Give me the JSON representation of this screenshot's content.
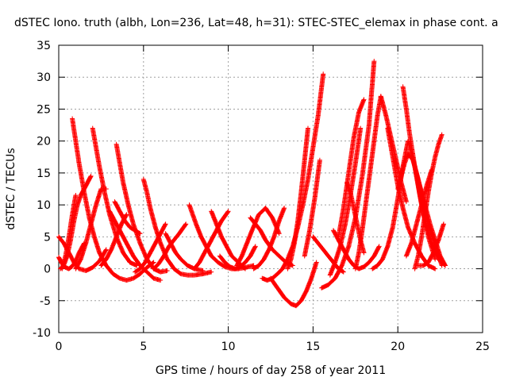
{
  "chart_data": {
    "type": "scatter",
    "title": "dSTEC Iono. truth (albh, Lon=236, Lat=48, h=31): STEC-STEC_elemax in phase cont. a",
    "xlabel": "GPS time / hours of day 258 of year 2011",
    "ylabel": "dSTEC  / TECUs",
    "xlim": [
      0,
      25
    ],
    "ylim": [
      -10,
      35
    ],
    "x_ticks": [
      0,
      5,
      10,
      15,
      20,
      25
    ],
    "y_ticks": [
      -10,
      -5,
      0,
      5,
      10,
      15,
      20,
      25,
      30,
      35
    ],
    "grid": true,
    "marker": "+",
    "marker_color": "#ff0000",
    "series": [
      {
        "arcs": [
          {
            "x": [
              0.0,
              0.3,
              0.6,
              0.9,
              1.2,
              1.6,
              2.0,
              2.4,
              2.8
            ],
            "y": [
              5.0,
              4.0,
              2.5,
              1.0,
              0.0,
              -0.3,
              0.2,
              1.2,
              3.0
            ]
          },
          {
            "x": [
              0.0,
              0.2,
              0.4,
              0.6,
              0.8,
              1.0,
              1.2,
              1.5
            ],
            "y": [
              1.8,
              0.8,
              0.2,
              0.0,
              0.4,
              1.2,
              2.5,
              4.0
            ]
          },
          {
            "x": [
              0.1,
              0.3,
              0.5,
              0.7,
              0.9,
              1.1,
              1.3,
              1.5,
              1.7,
              1.9
            ],
            "y": [
              0.0,
              0.6,
              2.0,
              4.5,
              7.5,
              10.0,
              11.5,
              12.5,
              13.5,
              14.5
            ]
          },
          {
            "x": [
              0.2,
              0.4,
              0.6,
              0.8,
              1.0
            ],
            "y": [
              0.0,
              2.0,
              5.0,
              8.5,
              11.5
            ]
          },
          {
            "x": [
              0.8,
              1.0,
              1.2,
              1.5,
              1.8,
              2.1,
              2.4,
              2.8,
              3.2,
              3.6,
              4.0,
              4.4,
              4.8,
              5.2,
              5.6
            ],
            "y": [
              23.5,
              20.0,
              16.5,
              12.0,
              8.0,
              5.0,
              2.5,
              0.5,
              -0.8,
              -1.5,
              -1.8,
              -1.5,
              -0.8,
              0.2,
              1.0
            ]
          },
          {
            "x": [
              2.0,
              2.2,
              2.4,
              2.7,
              3.0,
              3.4,
              3.8,
              4.2,
              4.6
            ],
            "y": [
              22.0,
              19.0,
              16.0,
              12.0,
              8.5,
              5.0,
              2.5,
              1.0,
              0.5
            ]
          },
          {
            "x": [
              1.0,
              1.3,
              1.6,
              1.9,
              2.2,
              2.5,
              2.8
            ],
            "y": [
              0.0,
              1.5,
              4.0,
              7.0,
              10.0,
              12.5,
              12.5
            ]
          },
          {
            "x": [
              3.4,
              3.6,
              3.8,
              4.1,
              4.4,
              4.8,
              5.2,
              5.6,
              6.0,
              6.4
            ],
            "y": [
              19.5,
              16.5,
              13.5,
              10.0,
              7.0,
              4.0,
              1.5,
              0.0,
              -0.5,
              -0.3
            ]
          },
          {
            "x": [
              3.0,
              3.3,
              3.6,
              4.0,
              4.4,
              4.8,
              5.2,
              5.6,
              6.0
            ],
            "y": [
              9.0,
              7.5,
              6.0,
              4.0,
              2.0,
              0.5,
              -0.5,
              -1.5,
              -1.8
            ]
          },
          {
            "x": [
              2.5,
              2.8,
              3.1,
              3.4,
              3.7,
              4.0
            ],
            "y": [
              0.5,
              1.5,
              3.0,
              5.0,
              7.0,
              8.5
            ]
          },
          {
            "x": [
              3.3,
              3.6,
              3.9,
              4.2,
              4.5,
              4.8
            ],
            "y": [
              10.5,
              9.0,
              7.5,
              6.5,
              6.0,
              5.5
            ]
          },
          {
            "x": [
              5.0,
              5.2,
              5.4,
              5.7,
              6.0,
              6.4,
              6.8,
              7.2,
              7.6,
              8.0,
              8.5,
              9.0
            ],
            "y": [
              14.0,
              12.0,
              9.5,
              6.5,
              4.0,
              1.5,
              0.0,
              -0.8,
              -1.0,
              -1.0,
              -0.8,
              -0.5
            ]
          },
          {
            "x": [
              4.5,
              4.8,
              5.1,
              5.4,
              5.7,
              6.0,
              6.3
            ],
            "y": [
              -0.5,
              0.0,
              1.0,
              2.5,
              4.0,
              5.5,
              7.0
            ]
          },
          {
            "x": [
              5.6,
              5.9,
              6.2,
              6.5,
              6.8,
              7.1,
              7.5
            ],
            "y": [
              0.0,
              0.8,
              2.0,
              3.5,
              4.5,
              5.5,
              7.0
            ]
          },
          {
            "x": [
              6.3,
              6.6,
              6.9,
              7.2,
              7.6,
              8.0,
              8.5
            ],
            "y": [
              5.5,
              4.0,
              2.5,
              1.5,
              0.5,
              0.0,
              -0.3
            ]
          },
          {
            "x": [
              7.7,
              7.9,
              8.1,
              8.4,
              8.7,
              9.0,
              9.4,
              9.8,
              10.2,
              10.6,
              11.0,
              11.5
            ],
            "y": [
              10.0,
              8.5,
              7.0,
              5.0,
              3.5,
              2.0,
              1.0,
              0.3,
              0.0,
              0.0,
              0.2,
              0.5
            ]
          },
          {
            "x": [
              9.5,
              9.8,
              10.1,
              10.4,
              10.7,
              11.0,
              11.3,
              11.6
            ],
            "y": [
              2.0,
              1.0,
              0.3,
              0.0,
              0.3,
              1.0,
              2.0,
              3.5
            ]
          },
          {
            "x": [
              9.0,
              9.3,
              9.6,
              9.9,
              10.2,
              10.6,
              11.0
            ],
            "y": [
              9.0,
              7.0,
              5.0,
              3.5,
              2.0,
              1.0,
              0.0
            ]
          },
          {
            "x": [
              8.0,
              8.3,
              8.6,
              8.9,
              9.2,
              9.6,
              10.0
            ],
            "y": [
              0.0,
              1.0,
              2.5,
              4.0,
              5.5,
              7.5,
              9.0
            ]
          },
          {
            "x": [
              10.5,
              10.8,
              11.1,
              11.4,
              11.8,
              12.2,
              12.6,
              13.0
            ],
            "y": [
              0.5,
              2.0,
              4.0,
              6.0,
              8.5,
              9.5,
              8.0,
              5.5
            ]
          },
          {
            "x": [
              11.3,
              11.6,
              11.9,
              12.2,
              12.6,
              13.0,
              13.4,
              13.8
            ],
            "y": [
              8.0,
              7.0,
              6.0,
              4.5,
              3.0,
              2.0,
              1.0,
              0.5
            ]
          },
          {
            "x": [
              11.5,
              11.8,
              12.1,
              12.4,
              12.7,
              13.0,
              13.3
            ],
            "y": [
              0.0,
              0.5,
              1.5,
              3.0,
              5.0,
              7.5,
              9.5
            ]
          },
          {
            "x": [
              12.0,
              12.3,
              12.6,
              12.9,
              13.2,
              13.5,
              13.8,
              14.1,
              14.4,
              14.7,
              15.0,
              15.3,
              15.6
            ],
            "y": [
              -1.5,
              -1.8,
              -1.5,
              -0.8,
              0.0,
              1.5,
              3.5,
              6.5,
              10.0,
              14.0,
              19.0,
              24.0,
              30.5
            ]
          },
          {
            "x": [
              12.5,
              12.9,
              13.3,
              13.7,
              14.0,
              14.3,
              14.6,
              14.9,
              15.2
            ],
            "y": [
              -1.5,
              -3.0,
              -4.5,
              -5.5,
              -5.8,
              -5.0,
              -3.5,
              -1.5,
              1.0
            ]
          },
          {
            "x": [
              13.5,
              13.7,
              13.9,
              14.1,
              14.3,
              14.5,
              14.7
            ],
            "y": [
              0.0,
              1.5,
              4.0,
              7.5,
              12.0,
              17.0,
              22.0
            ]
          },
          {
            "x": [
              14.5,
              14.8,
              15.1,
              15.4
            ],
            "y": [
              2.0,
              6.0,
              11.0,
              17.0
            ]
          },
          {
            "x": [
              15.0,
              15.3,
              15.6,
              15.9,
              16.2,
              16.5,
              16.8
            ],
            "y": [
              5.0,
              4.0,
              3.0,
              2.0,
              1.0,
              0.0,
              -0.5
            ]
          },
          {
            "x": [
              15.5,
              15.9,
              16.3,
              16.7,
              17.1,
              17.5,
              17.9,
              18.3,
              18.6
            ],
            "y": [
              -3.0,
              -2.5,
              -1.5,
              0.5,
              3.5,
              8.0,
              14.5,
              22.5,
              32.5
            ]
          },
          {
            "x": [
              16.0,
              16.3,
              16.6,
              16.9,
              17.2,
              17.5,
              17.8
            ],
            "y": [
              -1.0,
              1.0,
              3.5,
              7.0,
              11.5,
              16.5,
              22.0
            ]
          },
          {
            "x": [
              16.2,
              16.5,
              16.8,
              17.1,
              17.4,
              17.7,
              18.0,
              18.3,
              18.6,
              18.9
            ],
            "y": [
              6.0,
              4.5,
              3.0,
              1.5,
              0.5,
              0.0,
              0.3,
              1.0,
              2.0,
              3.5
            ]
          },
          {
            "x": [
              16.5,
              16.8,
              17.1,
              17.4,
              17.7,
              18.0
            ],
            "y": [
              5.0,
              9.5,
              15.0,
              20.5,
              24.5,
              26.5
            ]
          },
          {
            "x": [
              17.5,
              17.7,
              17.9,
              18.2,
              18.5,
              18.8,
              19.0
            ],
            "y": [
              0.0,
              2.5,
              6.0,
              12.0,
              18.0,
              24.0,
              27.0
            ]
          },
          {
            "x": [
              17.0,
              17.2,
              17.4,
              17.6,
              17.8,
              18.0
            ],
            "y": [
              13.5,
              12.0,
              9.5,
              7.0,
              4.5,
              2.5
            ]
          },
          {
            "x": [
              18.5,
              18.8,
              19.1,
              19.4,
              19.7,
              20.0,
              20.3,
              20.6,
              21.0,
              21.4,
              21.8,
              22.2
            ],
            "y": [
              0.0,
              0.5,
              1.5,
              3.5,
              6.5,
              11.0,
              16.0,
              20.0,
              16.0,
              10.0,
              5.0,
              1.5
            ]
          },
          {
            "x": [
              19.4,
              19.6,
              19.8,
              20.0,
              20.3,
              20.6,
              21.0,
              21.4,
              21.8,
              22.2
            ],
            "y": [
              22.0,
              19.0,
              16.0,
              13.0,
              9.5,
              6.5,
              4.0,
              2.0,
              0.5,
              0.0
            ]
          },
          {
            "x": [
              20.0,
              20.2,
              20.4,
              20.6,
              20.9,
              21.2,
              21.5,
              21.8,
              22.2,
              22.6
            ],
            "y": [
              12.5,
              14.5,
              16.5,
              18.0,
              17.0,
              14.0,
              10.5,
              7.0,
              3.5,
              0.5
            ]
          },
          {
            "x": [
              20.3,
              20.5,
              20.7,
              21.0,
              21.3,
              21.6,
              22.0,
              22.4,
              22.8
            ],
            "y": [
              28.5,
              25.0,
              21.0,
              16.0,
              11.5,
              7.5,
              4.0,
              1.5,
              0.5
            ]
          },
          {
            "x": [
              21.0,
              21.2,
              21.4,
              21.6,
              21.8,
              22.0,
              22.2,
              22.4,
              22.6
            ],
            "y": [
              0.0,
              2.0,
              5.0,
              8.5,
              12.0,
              15.0,
              17.5,
              19.5,
              21.0
            ]
          },
          {
            "x": [
              21.0,
              21.3,
              21.6,
              21.9,
              22.2,
              22.5,
              22.8
            ],
            "y": [
              16.0,
              13.0,
              10.0,
              7.0,
              4.5,
              2.0,
              0.5
            ]
          },
          {
            "x": [
              21.2,
              21.5,
              21.8,
              22.1,
              22.4,
              22.7
            ],
            "y": [
              0.5,
              0.5,
              1.0,
              2.5,
              4.5,
              7.0
            ]
          },
          {
            "x": [
              20.5,
              20.8,
              21.1,
              21.4,
              21.7,
              22.0
            ],
            "y": [
              2.0,
              4.0,
              7.0,
              10.0,
              13.0,
              15.5
            ]
          },
          {
            "x": [
              19.0,
              19.3,
              19.6,
              19.9,
              20.2,
              20.5
            ],
            "y": [
              27.0,
              24.0,
              20.5,
              17.0,
              13.5,
              10.5
            ]
          }
        ]
      }
    ]
  }
}
